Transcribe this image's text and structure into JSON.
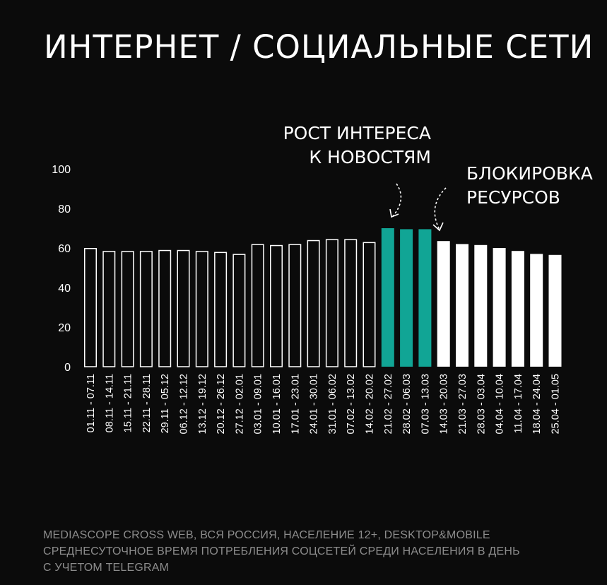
{
  "title": "ИНТЕРНЕТ  /  СОЦИАЛЬНЫЕ СЕТИ",
  "annotations": {
    "growth": [
      "РОСТ ИНТЕРЕСА",
      "К НОВОСТЯМ"
    ],
    "blocking": [
      "БЛОКИРОВКА",
      "РЕСУРСОВ"
    ]
  },
  "footnote": [
    "MEDIASCOPE CROSS WEB, ВСЯ РОССИЯ, НАСЕЛЕНИЕ 12+, DESKTOP&MOBILE",
    "СРЕДНЕСУТОЧНОЕ ВРЕМЯ ПОТРЕБЛЕНИЯ СОЦСЕТЕЙ СРЕДИ НАСЕЛЕНИЯ В ДЕНЬ",
    "С УЧЕТОМ TELEGRAM"
  ],
  "colors": {
    "background": "#0b0b0b",
    "outline_bar": "#ffffff",
    "highlight": "#11a595",
    "solid_bar": "#ffffff"
  },
  "chart_data": {
    "type": "bar",
    "ylim": [
      0,
      100
    ],
    "yticks": [
      0,
      20,
      40,
      60,
      80,
      100
    ],
    "grid": false,
    "categories": [
      "01.11 - 07.11",
      "08.11 - 14.11",
      "15.11 - 21.11",
      "22.11 - 28.11",
      "29.11 - 05.12",
      "06.12 - 12.12",
      "13.12 - 19.12",
      "20.12 - 26.12",
      "27.12 - 02.01",
      "03.01 - 09.01",
      "10.01 - 16.01",
      "17.01 - 23.01",
      "24.01 - 30.01",
      "31.01 - 06.02",
      "07.02 - 13.02",
      "14.02 - 20.02",
      "21.02 - 27.02",
      "28.02 - 06.03",
      "07.03 - 13.03",
      "14.03 - 20.03",
      "21.03 - 27.03",
      "28.03 - 03.04",
      "04.04 - 10.04",
      "11.04 - 17.04",
      "18.04 - 24.04",
      "25.04 - 01.05"
    ],
    "values": [
      60,
      58.5,
      58.5,
      58.5,
      59,
      59,
      58.5,
      58,
      57,
      62,
      61.5,
      62,
      64,
      64.5,
      64.5,
      63,
      70,
      69.5,
      69.5,
      63.5,
      62,
      61.5,
      60,
      58.5,
      57,
      56.5
    ],
    "bar_styles": [
      "outline",
      "outline",
      "outline",
      "outline",
      "outline",
      "outline",
      "outline",
      "outline",
      "outline",
      "outline",
      "outline",
      "outline",
      "outline",
      "outline",
      "outline",
      "outline",
      "highlight",
      "highlight",
      "highlight",
      "solid",
      "solid",
      "solid",
      "solid",
      "solid",
      "solid",
      "solid"
    ]
  }
}
